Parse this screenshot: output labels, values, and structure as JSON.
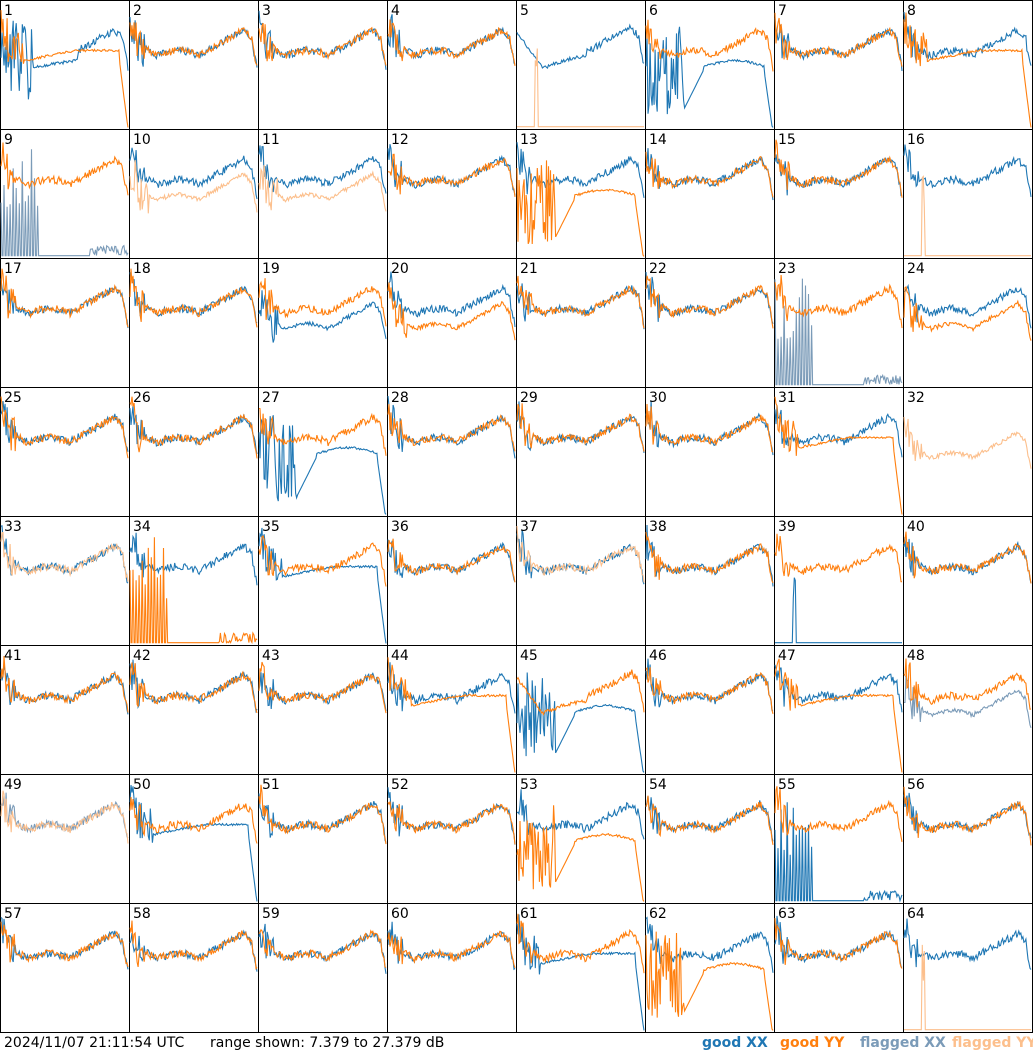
{
  "footer": {
    "timestamp": "2024/11/07 21:11:54 UTC",
    "range": "range shown: 7.379 to 27.379 dB"
  },
  "legend": {
    "good_xx": "good XX",
    "good_yy": "good YY",
    "flagged_xx": "flagged XX",
    "flagged_yy": "flagged YY"
  },
  "colors": {
    "good_xx": "#1f77b4",
    "good_yy": "#ff7f0e",
    "flagged_xx": "#7b9bb8",
    "flagged_yy": "#fcbf8c",
    "grid_lines": "#000000"
  },
  "chart_data": {
    "type": "line",
    "layout": "8x8 small-multiple grid of antenna spectra",
    "ylim": [
      7.379,
      27.379
    ],
    "yunit": "dB",
    "panels": [
      {
        "label": "1",
        "xx": "good",
        "yy": "good",
        "xx_shape": "spiky-dip",
        "yy_shape": "rolloff"
      },
      {
        "label": "2",
        "xx": "good",
        "yy": "good",
        "xx_shape": "normal",
        "yy_shape": "normal"
      },
      {
        "label": "3",
        "xx": "good",
        "yy": "good",
        "xx_shape": "normal",
        "yy_shape": "normal"
      },
      {
        "label": "4",
        "xx": "good",
        "yy": "good",
        "xx_shape": "normal",
        "yy_shape": "normal"
      },
      {
        "label": "5",
        "xx": "good",
        "yy": "flagged",
        "xx_shape": "dip",
        "yy_shape": "floor"
      },
      {
        "label": "6",
        "xx": "good",
        "yy": "good",
        "xx_shape": "rolloff-spiky",
        "yy_shape": "normal"
      },
      {
        "label": "7",
        "xx": "good",
        "yy": "good",
        "xx_shape": "normal",
        "yy_shape": "normal"
      },
      {
        "label": "8",
        "xx": "good",
        "yy": "good",
        "xx_shape": "normal",
        "yy_shape": "rolloff"
      },
      {
        "label": "9",
        "xx": "flagged",
        "yy": "good",
        "xx_shape": "spikes-floor",
        "yy_shape": "normal"
      },
      {
        "label": "10",
        "xx": "good",
        "yy": "flagged",
        "xx_shape": "normal",
        "yy_shape": "low"
      },
      {
        "label": "11",
        "xx": "good",
        "yy": "flagged",
        "xx_shape": "normal",
        "yy_shape": "low"
      },
      {
        "label": "12",
        "xx": "good",
        "yy": "good",
        "xx_shape": "normal",
        "yy_shape": "normal"
      },
      {
        "label": "13",
        "xx": "good",
        "yy": "good",
        "xx_shape": "normal",
        "yy_shape": "rolloff-spiky"
      },
      {
        "label": "14",
        "xx": "good",
        "yy": "good",
        "xx_shape": "normal",
        "yy_shape": "normal"
      },
      {
        "label": "15",
        "xx": "good",
        "yy": "good",
        "xx_shape": "normal",
        "yy_shape": "normal"
      },
      {
        "label": "16",
        "xx": "good",
        "yy": "flagged",
        "xx_shape": "normal",
        "yy_shape": "floor"
      },
      {
        "label": "17",
        "xx": "good",
        "yy": "good",
        "xx_shape": "normal",
        "yy_shape": "normal"
      },
      {
        "label": "18",
        "xx": "good",
        "yy": "good",
        "xx_shape": "normal",
        "yy_shape": "normal"
      },
      {
        "label": "19",
        "xx": "good",
        "yy": "good",
        "xx_shape": "low",
        "yy_shape": "normal"
      },
      {
        "label": "20",
        "xx": "good",
        "yy": "good",
        "xx_shape": "normal",
        "yy_shape": "low"
      },
      {
        "label": "21",
        "xx": "good",
        "yy": "good",
        "xx_shape": "normal",
        "yy_shape": "normal"
      },
      {
        "label": "22",
        "xx": "good",
        "yy": "good",
        "xx_shape": "normal",
        "yy_shape": "normal"
      },
      {
        "label": "23",
        "xx": "flagged",
        "yy": "good",
        "xx_shape": "spikes-floor",
        "yy_shape": "normal"
      },
      {
        "label": "24",
        "xx": "good",
        "yy": "good",
        "xx_shape": "normal",
        "yy_shape": "low"
      },
      {
        "label": "25",
        "xx": "good",
        "yy": "good",
        "xx_shape": "normal",
        "yy_shape": "normal"
      },
      {
        "label": "26",
        "xx": "good",
        "yy": "good",
        "xx_shape": "normal",
        "yy_shape": "normal"
      },
      {
        "label": "27",
        "xx": "good",
        "yy": "good",
        "xx_shape": "rolloff-spiky",
        "yy_shape": "normal"
      },
      {
        "label": "28",
        "xx": "good",
        "yy": "good",
        "xx_shape": "normal",
        "yy_shape": "normal"
      },
      {
        "label": "29",
        "xx": "good",
        "yy": "good",
        "xx_shape": "normal",
        "yy_shape": "normal"
      },
      {
        "label": "30",
        "xx": "good",
        "yy": "good",
        "xx_shape": "normal",
        "yy_shape": "normal"
      },
      {
        "label": "31",
        "xx": "good",
        "yy": "good",
        "xx_shape": "normal",
        "yy_shape": "rolloff"
      },
      {
        "label": "32",
        "xx": "none",
        "yy": "flagged",
        "xx_shape": "none",
        "yy_shape": "low"
      },
      {
        "label": "33",
        "xx": "good",
        "yy": "flagged",
        "xx_shape": "normal",
        "yy_shape": "normal"
      },
      {
        "label": "34",
        "xx": "good",
        "yy": "good",
        "xx_shape": "normal",
        "yy_shape": "spikes-floor"
      },
      {
        "label": "35",
        "xx": "good",
        "yy": "good",
        "xx_shape": "rolloff",
        "yy_shape": "normal"
      },
      {
        "label": "36",
        "xx": "good",
        "yy": "good",
        "xx_shape": "normal",
        "yy_shape": "normal"
      },
      {
        "label": "37",
        "xx": "good",
        "yy": "flagged",
        "xx_shape": "normal",
        "yy_shape": "normal"
      },
      {
        "label": "38",
        "xx": "good",
        "yy": "good",
        "xx_shape": "normal",
        "yy_shape": "normal"
      },
      {
        "label": "39",
        "xx": "good",
        "yy": "good",
        "xx_shape": "floor",
        "yy_shape": "normal"
      },
      {
        "label": "40",
        "xx": "good",
        "yy": "good",
        "xx_shape": "normal",
        "yy_shape": "normal"
      },
      {
        "label": "41",
        "xx": "good",
        "yy": "good",
        "xx_shape": "normal",
        "yy_shape": "normal"
      },
      {
        "label": "42",
        "xx": "good",
        "yy": "good",
        "xx_shape": "normal",
        "yy_shape": "normal"
      },
      {
        "label": "43",
        "xx": "good",
        "yy": "good",
        "xx_shape": "normal",
        "yy_shape": "normal"
      },
      {
        "label": "44",
        "xx": "good",
        "yy": "good",
        "xx_shape": "normal",
        "yy_shape": "rolloff"
      },
      {
        "label": "45",
        "xx": "good",
        "yy": "good",
        "xx_shape": "rolloff-spiky",
        "yy_shape": "dip"
      },
      {
        "label": "46",
        "xx": "good",
        "yy": "good",
        "xx_shape": "normal",
        "yy_shape": "normal"
      },
      {
        "label": "47",
        "xx": "good",
        "yy": "good",
        "xx_shape": "normal",
        "yy_shape": "rolloff"
      },
      {
        "label": "48",
        "xx": "flagged",
        "yy": "good",
        "xx_shape": "low",
        "yy_shape": "normal"
      },
      {
        "label": "49",
        "xx": "flagged",
        "yy": "flagged",
        "xx_shape": "normal",
        "yy_shape": "normal"
      },
      {
        "label": "50",
        "xx": "good",
        "yy": "good",
        "xx_shape": "rolloff",
        "yy_shape": "normal"
      },
      {
        "label": "51",
        "xx": "good",
        "yy": "good",
        "xx_shape": "normal",
        "yy_shape": "normal"
      },
      {
        "label": "52",
        "xx": "good",
        "yy": "good",
        "xx_shape": "normal",
        "yy_shape": "normal"
      },
      {
        "label": "53",
        "xx": "good",
        "yy": "good",
        "xx_shape": "normal",
        "yy_shape": "rolloff-spiky"
      },
      {
        "label": "54",
        "xx": "good",
        "yy": "good",
        "xx_shape": "normal",
        "yy_shape": "normal"
      },
      {
        "label": "55",
        "xx": "good",
        "yy": "good",
        "xx_shape": "spikes-floor",
        "yy_shape": "normal"
      },
      {
        "label": "56",
        "xx": "good",
        "yy": "good",
        "xx_shape": "normal",
        "yy_shape": "normal"
      },
      {
        "label": "57",
        "xx": "good",
        "yy": "good",
        "xx_shape": "normal",
        "yy_shape": "normal"
      },
      {
        "label": "58",
        "xx": "good",
        "yy": "good",
        "xx_shape": "normal",
        "yy_shape": "normal"
      },
      {
        "label": "59",
        "xx": "good",
        "yy": "good",
        "xx_shape": "normal",
        "yy_shape": "normal"
      },
      {
        "label": "60",
        "xx": "good",
        "yy": "good",
        "xx_shape": "normal",
        "yy_shape": "normal"
      },
      {
        "label": "61",
        "xx": "good",
        "yy": "good",
        "xx_shape": "rolloff",
        "yy_shape": "normal"
      },
      {
        "label": "62",
        "xx": "good",
        "yy": "good",
        "xx_shape": "normal",
        "yy_shape": "rolloff-spiky"
      },
      {
        "label": "63",
        "xx": "good",
        "yy": "good",
        "xx_shape": "normal",
        "yy_shape": "normal"
      },
      {
        "label": "64",
        "xx": "good",
        "yy": "flagged",
        "xx_shape": "normal",
        "yy_shape": "floor"
      }
    ]
  }
}
